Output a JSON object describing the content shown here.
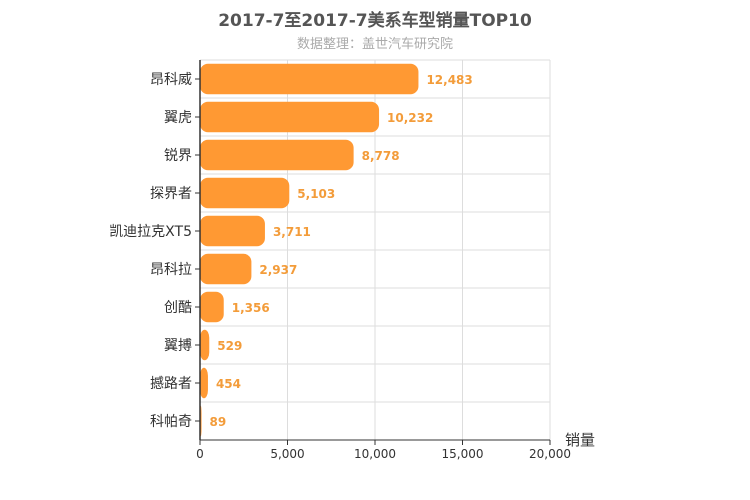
{
  "chart_data": {
    "type": "bar",
    "orientation": "horizontal",
    "title": "2017-7至2017-7美系车型销量TOP10",
    "subtitle": "数据整理：盖世汽车研究院",
    "xlabel": "销量",
    "categories": [
      "昂科威",
      "翼虎",
      "锐界",
      "探界者",
      "凯迪拉克XT5",
      "昂科拉",
      "创酷",
      "翼搏",
      "撼路者",
      "科帕奇"
    ],
    "values": [
      12483,
      10232,
      8778,
      5103,
      3711,
      2937,
      1356,
      529,
      454,
      89
    ],
    "value_labels": [
      "12,483",
      "10,232",
      "8,778",
      "5,103",
      "3,711",
      "2,937",
      "1,356",
      "529",
      "454",
      "89"
    ],
    "xlim": [
      0,
      20000
    ],
    "x_ticks": [
      0,
      5000,
      10000,
      15000,
      20000
    ],
    "x_tick_labels": [
      "0",
      "5,000",
      "10,000",
      "15,000",
      "20,000"
    ],
    "grid": true,
    "bar_color": "#ff9933",
    "label_color": "#f39c3a"
  }
}
